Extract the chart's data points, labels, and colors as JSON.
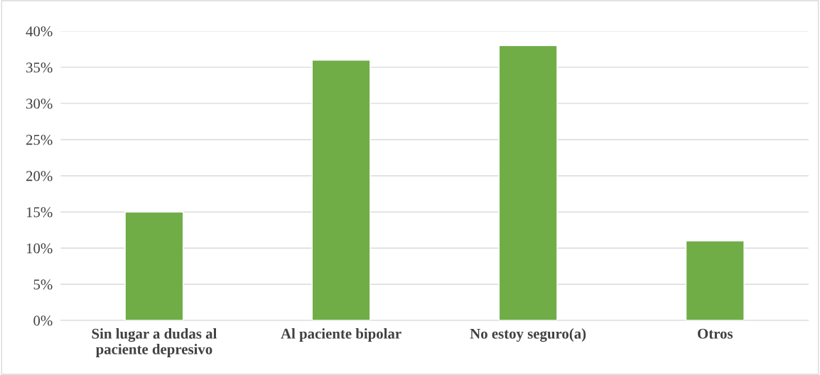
{
  "chart_data": {
    "type": "bar",
    "categories": [
      "Sin lugar a dudas al\npaciente depresivo",
      "Al paciente bipolar",
      "No estoy seguro(a)",
      "Otros"
    ],
    "values": [
      15,
      36,
      38,
      11
    ],
    "color": "#70ad47",
    "ylim": [
      0,
      40
    ],
    "yticks": [
      {
        "value": 0,
        "label": "0%"
      },
      {
        "value": 5,
        "label": "5%"
      },
      {
        "value": 10,
        "label": "10%"
      },
      {
        "value": 15,
        "label": "15%"
      },
      {
        "value": 20,
        "label": "20%"
      },
      {
        "value": 25,
        "label": "25%"
      },
      {
        "value": 30,
        "label": "30%"
      },
      {
        "value": 35,
        "label": "35%"
      },
      {
        "value": 40,
        "label": "40%"
      }
    ],
    "grid": "y"
  }
}
